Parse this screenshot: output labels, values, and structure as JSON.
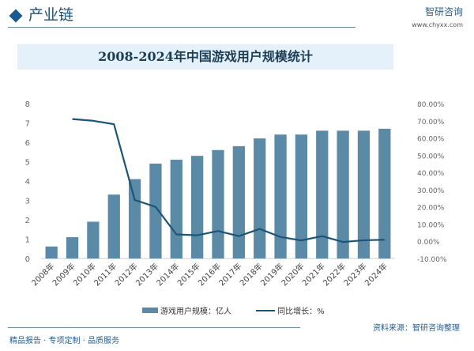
{
  "header": {
    "section": "产业链",
    "logo": "智研咨询",
    "url": "www.chyxx.com"
  },
  "footer": {
    "tagline": "精品报告 · 专项定制 · 品质服务",
    "source": "资料来源：智研咨询整理"
  },
  "chart_data": {
    "type": "bar+line",
    "title": "2008-2024年中国游戏用户规模统计",
    "categories": [
      "2008年",
      "2009年",
      "2010年",
      "2011年",
      "2012年",
      "2013年",
      "2014年",
      "2015年",
      "2016年",
      "2017年",
      "2018年",
      "2019年",
      "2020年",
      "2021年",
      "2022年",
      "2023年",
      "2024年"
    ],
    "series": [
      {
        "name": "游戏用户规模：亿人",
        "type": "bar",
        "axis": "left",
        "color": "#5a8aa6",
        "values": [
          0.62,
          1.1,
          1.9,
          3.3,
          4.1,
          4.9,
          5.1,
          5.3,
          5.6,
          5.8,
          6.2,
          6.4,
          6.4,
          6.6,
          6.6,
          6.6,
          6.7
        ]
      },
      {
        "name": "同比增长：%",
        "type": "line",
        "axis": "right",
        "color": "#1c5578",
        "values": [
          null,
          71,
          70,
          68,
          24,
          20,
          4,
          3.5,
          6,
          3,
          7.2,
          2.5,
          0.5,
          3,
          -0.4,
          0.6,
          0.9
        ]
      }
    ],
    "left_axis": {
      "range": [
        0,
        8
      ],
      "ticks": [
        "0",
        "1",
        "2",
        "3",
        "4",
        "5",
        "6",
        "7",
        "8"
      ]
    },
    "right_axis": {
      "range": [
        -10,
        80
      ],
      "ticks": [
        "-10.00%",
        "0.00%",
        "10.00%",
        "20.00%",
        "30.00%",
        "40.00%",
        "50.00%",
        "60.00%",
        "70.00%",
        "80.00%"
      ]
    },
    "grid": false,
    "legend": "bottom"
  }
}
